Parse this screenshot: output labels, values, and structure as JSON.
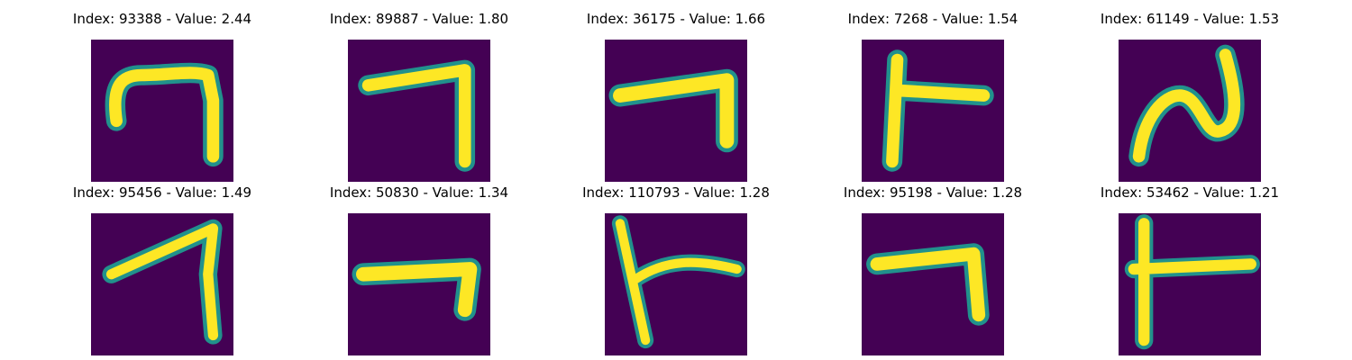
{
  "colors": {
    "background": "#440154",
    "stroke": "#fde725",
    "edge": "#21918c"
  },
  "panels": [
    {
      "title": "Index: 93388 - Value: 2.44",
      "glyph": "seven-curled"
    },
    {
      "title": "Index: 89887 - Value: 1.80",
      "glyph": "seven-wide"
    },
    {
      "title": "Index: 36175 - Value: 1.66",
      "glyph": "seven-flat"
    },
    {
      "title": "Index: 7268 - Value: 1.54",
      "glyph": "seven-left-bar"
    },
    {
      "title": "Index: 61149 - Value: 1.53",
      "glyph": "two-wave"
    },
    {
      "title": "Index: 95456 - Value: 1.49",
      "glyph": "seven-slanted"
    },
    {
      "title": "Index: 50830 - Value: 1.34",
      "glyph": "seven-box"
    },
    {
      "title": "Index: 110793 - Value: 1.28",
      "glyph": "seven-thin-left"
    },
    {
      "title": "Index: 95198 - Value: 1.28",
      "glyph": "seven-bent"
    },
    {
      "title": "Index: 53462 - Value: 1.21",
      "glyph": "seven-t"
    }
  ]
}
